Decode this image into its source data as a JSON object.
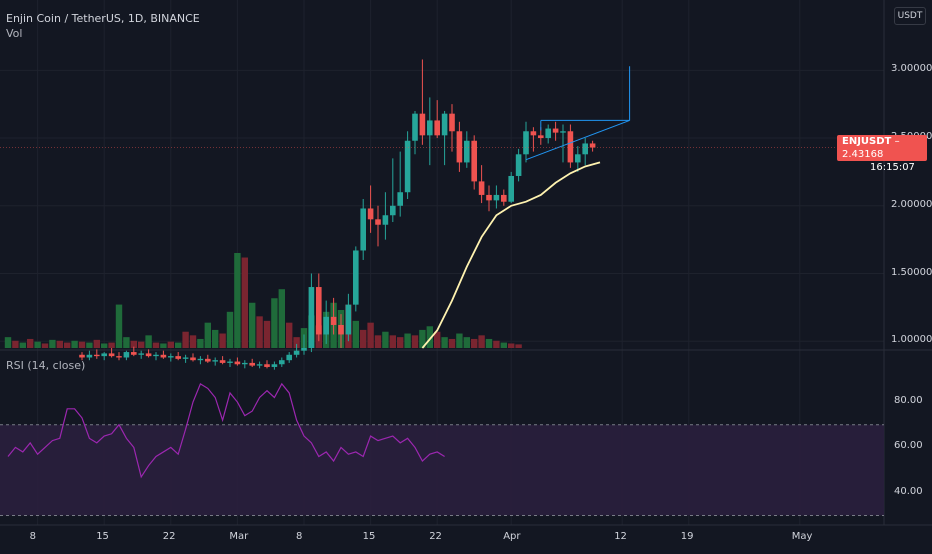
{
  "header": {
    "title": "Enjin Coin / TetherUS, 1D, BINANCE",
    "volume_label": "Vol",
    "rsi_label": "RSI (14, close)"
  },
  "quote_currency": "USDT",
  "last_price": {
    "symbol": "ENJUSDT",
    "value": "2.43168",
    "countdown": "16:15:07"
  },
  "colors": {
    "background": "#131722",
    "up": "#26a69a",
    "down": "#ef5350",
    "vol_up": "#1f6b3a",
    "vol_down": "#7a2530",
    "ma": "#fff3b0",
    "rsi": "#9c27b0",
    "rsi_band": "#2a1f3d",
    "drawing": "#2196f3",
    "price_tag": "#f05350"
  },
  "chart_data": [
    {
      "type": "candlestick",
      "price_axis_ticks": [
        "3.00000",
        "2.50000",
        "2.00000",
        "1.50000",
        "1.00000"
      ],
      "ylim": [
        0.95,
        3.15
      ],
      "x_tick_labels": [
        "8",
        "15",
        "22",
        "Mar",
        "8",
        "15",
        "22",
        "Apr",
        "12",
        "19",
        "May"
      ],
      "candles": [
        {
          "o": 0.9,
          "h": 0.92,
          "l": 0.86,
          "c": 0.88
        },
        {
          "o": 0.88,
          "h": 0.93,
          "l": 0.86,
          "c": 0.9
        },
        {
          "o": 0.9,
          "h": 0.94,
          "l": 0.87,
          "c": 0.89
        },
        {
          "o": 0.89,
          "h": 0.92,
          "l": 0.86,
          "c": 0.91
        },
        {
          "o": 0.91,
          "h": 0.95,
          "l": 0.88,
          "c": 0.89
        },
        {
          "o": 0.89,
          "h": 0.92,
          "l": 0.86,
          "c": 0.88
        },
        {
          "o": 0.88,
          "h": 0.93,
          "l": 0.86,
          "c": 0.92
        },
        {
          "o": 0.92,
          "h": 0.96,
          "l": 0.89,
          "c": 0.9
        },
        {
          "o": 0.9,
          "h": 0.93,
          "l": 0.87,
          "c": 0.91
        },
        {
          "o": 0.91,
          "h": 0.94,
          "l": 0.88,
          "c": 0.89
        },
        {
          "o": 0.89,
          "h": 0.92,
          "l": 0.86,
          "c": 0.9
        },
        {
          "o": 0.9,
          "h": 0.93,
          "l": 0.87,
          "c": 0.88
        },
        {
          "o": 0.88,
          "h": 0.91,
          "l": 0.85,
          "c": 0.89
        },
        {
          "o": 0.89,
          "h": 0.92,
          "l": 0.86,
          "c": 0.87
        },
        {
          "o": 0.87,
          "h": 0.9,
          "l": 0.84,
          "c": 0.88
        },
        {
          "o": 0.88,
          "h": 0.91,
          "l": 0.85,
          "c": 0.86
        },
        {
          "o": 0.86,
          "h": 0.89,
          "l": 0.83,
          "c": 0.87
        },
        {
          "o": 0.87,
          "h": 0.9,
          "l": 0.84,
          "c": 0.85
        },
        {
          "o": 0.85,
          "h": 0.88,
          "l": 0.82,
          "c": 0.86
        },
        {
          "o": 0.86,
          "h": 0.89,
          "l": 0.83,
          "c": 0.84
        },
        {
          "o": 0.84,
          "h": 0.87,
          "l": 0.81,
          "c": 0.85
        },
        {
          "o": 0.85,
          "h": 0.88,
          "l": 0.82,
          "c": 0.83
        },
        {
          "o": 0.83,
          "h": 0.86,
          "l": 0.8,
          "c": 0.84
        },
        {
          "o": 0.84,
          "h": 0.87,
          "l": 0.81,
          "c": 0.82
        },
        {
          "o": 0.82,
          "h": 0.85,
          "l": 0.8,
          "c": 0.83
        },
        {
          "o": 0.83,
          "h": 0.86,
          "l": 0.8,
          "c": 0.81
        },
        {
          "o": 0.81,
          "h": 0.85,
          "l": 0.79,
          "c": 0.83
        },
        {
          "o": 0.83,
          "h": 0.88,
          "l": 0.81,
          "c": 0.86
        },
        {
          "o": 0.86,
          "h": 0.92,
          "l": 0.84,
          "c": 0.9
        },
        {
          "o": 0.9,
          "h": 0.98,
          "l": 0.88,
          "c": 0.93
        },
        {
          "o": 0.93,
          "h": 1.05,
          "l": 0.9,
          "c": 0.95
        },
        {
          "o": 0.95,
          "h": 1.5,
          "l": 0.92,
          "c": 1.4
        },
        {
          "o": 1.4,
          "h": 1.5,
          "l": 1.0,
          "c": 1.05
        },
        {
          "o": 1.05,
          "h": 1.3,
          "l": 0.98,
          "c": 1.18
        },
        {
          "o": 1.18,
          "h": 1.32,
          "l": 1.05,
          "c": 1.12
        },
        {
          "o": 1.12,
          "h": 1.2,
          "l": 0.95,
          "c": 1.05
        },
        {
          "o": 1.05,
          "h": 1.35,
          "l": 1.0,
          "c": 1.27
        },
        {
          "o": 1.27,
          "h": 1.7,
          "l": 1.22,
          "c": 1.67
        },
        {
          "o": 1.67,
          "h": 2.05,
          "l": 1.6,
          "c": 1.98
        },
        {
          "o": 1.98,
          "h": 2.15,
          "l": 1.8,
          "c": 1.9
        },
        {
          "o": 1.9,
          "h": 2.0,
          "l": 1.7,
          "c": 1.86
        },
        {
          "o": 1.86,
          "h": 2.1,
          "l": 1.75,
          "c": 1.93
        },
        {
          "o": 1.93,
          "h": 2.35,
          "l": 1.88,
          "c": 2.0
        },
        {
          "o": 2.0,
          "h": 2.4,
          "l": 1.92,
          "c": 2.1
        },
        {
          "o": 2.1,
          "h": 2.55,
          "l": 2.05,
          "c": 2.48
        },
        {
          "o": 2.48,
          "h": 2.7,
          "l": 2.38,
          "c": 2.68
        },
        {
          "o": 2.68,
          "h": 3.08,
          "l": 2.45,
          "c": 2.52
        },
        {
          "o": 2.52,
          "h": 2.8,
          "l": 2.3,
          "c": 2.63
        },
        {
          "o": 2.63,
          "h": 2.78,
          "l": 2.5,
          "c": 2.52
        },
        {
          "o": 2.52,
          "h": 2.7,
          "l": 2.3,
          "c": 2.68
        },
        {
          "o": 2.68,
          "h": 2.75,
          "l": 2.4,
          "c": 2.55
        },
        {
          "o": 2.55,
          "h": 2.62,
          "l": 2.25,
          "c": 2.32
        },
        {
          "o": 2.32,
          "h": 2.55,
          "l": 2.28,
          "c": 2.48
        },
        {
          "o": 2.48,
          "h": 2.52,
          "l": 2.12,
          "c": 2.18
        },
        {
          "o": 2.18,
          "h": 2.3,
          "l": 2.02,
          "c": 2.08
        },
        {
          "o": 2.08,
          "h": 2.15,
          "l": 1.96,
          "c": 2.04
        },
        {
          "o": 2.04,
          "h": 2.15,
          "l": 1.98,
          "c": 2.08
        },
        {
          "o": 2.08,
          "h": 2.12,
          "l": 2.0,
          "c": 2.03
        },
        {
          "o": 2.03,
          "h": 2.25,
          "l": 2.02,
          "c": 2.22
        },
        {
          "o": 2.22,
          "h": 2.42,
          "l": 2.18,
          "c": 2.38
        },
        {
          "o": 2.38,
          "h": 2.62,
          "l": 2.32,
          "c": 2.55
        },
        {
          "o": 2.55,
          "h": 2.58,
          "l": 2.4,
          "c": 2.52
        },
        {
          "o": 2.52,
          "h": 2.58,
          "l": 2.45,
          "c": 2.5
        },
        {
          "o": 2.5,
          "h": 2.6,
          "l": 2.46,
          "c": 2.57
        },
        {
          "o": 2.57,
          "h": 2.62,
          "l": 2.48,
          "c": 2.54
        },
        {
          "o": 2.54,
          "h": 2.6,
          "l": 2.32,
          "c": 2.55
        },
        {
          "o": 2.55,
          "h": 2.6,
          "l": 2.28,
          "c": 2.32
        },
        {
          "o": 2.32,
          "h": 2.44,
          "l": 2.25,
          "c": 2.38
        },
        {
          "o": 2.38,
          "h": 2.5,
          "l": 2.3,
          "c": 2.46
        },
        {
          "o": 2.46,
          "h": 2.48,
          "l": 2.4,
          "c": 2.43
        }
      ],
      "ma_series": [
        {
          "i": 46,
          "v": 0.95
        },
        {
          "i": 48,
          "v": 1.08
        },
        {
          "i": 50,
          "v": 1.3
        },
        {
          "i": 52,
          "v": 1.55
        },
        {
          "i": 54,
          "v": 1.77
        },
        {
          "i": 56,
          "v": 1.93
        },
        {
          "i": 58,
          "v": 2.0
        },
        {
          "i": 60,
          "v": 2.03
        },
        {
          "i": 62,
          "v": 2.08
        },
        {
          "i": 64,
          "v": 2.17
        },
        {
          "i": 66,
          "v": 2.24
        },
        {
          "i": 68,
          "v": 2.29
        },
        {
          "i": 70,
          "v": 2.32
        }
      ],
      "volume": [
        {
          "v": 12,
          "up": true
        },
        {
          "v": 8,
          "up": false
        },
        {
          "v": 6,
          "up": true
        },
        {
          "v": 10,
          "up": false
        },
        {
          "v": 7,
          "up": true
        },
        {
          "v": 5,
          "up": false
        },
        {
          "v": 9,
          "up": true
        },
        {
          "v": 8,
          "up": false
        },
        {
          "v": 6,
          "up": false
        },
        {
          "v": 8,
          "up": true
        },
        {
          "v": 7,
          "up": false
        },
        {
          "v": 6,
          "up": true
        },
        {
          "v": 9,
          "up": false
        },
        {
          "v": 5,
          "up": true
        },
        {
          "v": 6,
          "up": false
        },
        {
          "v": 48,
          "up": true
        },
        {
          "v": 12,
          "up": true
        },
        {
          "v": 8,
          "up": false
        },
        {
          "v": 7,
          "up": false
        },
        {
          "v": 14,
          "up": true
        },
        {
          "v": 6,
          "up": false
        },
        {
          "v": 5,
          "up": true
        },
        {
          "v": 7,
          "up": false
        },
        {
          "v": 6,
          "up": true
        },
        {
          "v": 18,
          "up": false
        },
        {
          "v": 14,
          "up": false
        },
        {
          "v": 10,
          "up": true
        },
        {
          "v": 28,
          "up": true
        },
        {
          "v": 20,
          "up": true
        },
        {
          "v": 16,
          "up": false
        },
        {
          "v": 40,
          "up": true
        },
        {
          "v": 105,
          "up": true
        },
        {
          "v": 100,
          "up": false
        },
        {
          "v": 50,
          "up": true
        },
        {
          "v": 35,
          "up": false
        },
        {
          "v": 30,
          "up": false
        },
        {
          "v": 55,
          "up": true
        },
        {
          "v": 65,
          "up": true
        },
        {
          "v": 28,
          "up": false
        },
        {
          "v": 12,
          "up": false
        },
        {
          "v": 22,
          "up": true
        },
        {
          "v": 36,
          "up": true
        },
        {
          "v": 25,
          "up": false
        },
        {
          "v": 40,
          "up": true
        },
        {
          "v": 50,
          "up": true
        },
        {
          "v": 42,
          "up": true
        },
        {
          "v": 48,
          "up": false
        },
        {
          "v": 30,
          "up": true
        },
        {
          "v": 20,
          "up": false
        },
        {
          "v": 28,
          "up": false
        },
        {
          "v": 14,
          "up": false
        },
        {
          "v": 18,
          "up": true
        },
        {
          "v": 14,
          "up": false
        },
        {
          "v": 12,
          "up": false
        },
        {
          "v": 16,
          "up": true
        },
        {
          "v": 14,
          "up": false
        },
        {
          "v": 20,
          "up": true
        },
        {
          "v": 24,
          "up": true
        },
        {
          "v": 18,
          "up": false
        },
        {
          "v": 12,
          "up": true
        },
        {
          "v": 10,
          "up": false
        },
        {
          "v": 16,
          "up": true
        },
        {
          "v": 12,
          "up": true
        },
        {
          "v": 10,
          "up": false
        },
        {
          "v": 14,
          "up": false
        },
        {
          "v": 10,
          "up": true
        },
        {
          "v": 8,
          "up": false
        },
        {
          "v": 6,
          "up": true
        },
        {
          "v": 5,
          "up": false
        },
        {
          "v": 4,
          "up": false
        }
      ],
      "horizontal_line": {
        "value": 2.63,
        "from_index": 62,
        "to_index": 74
      },
      "triangle": {
        "apex_index": 84,
        "apex_value": 2.63,
        "low_index": 70,
        "low_value": 2.34,
        "high_value": 2.63
      },
      "spike": {
        "index": 74,
        "value": 3.03
      }
    },
    {
      "type": "line",
      "name": "RSI (14, close)",
      "axis_ticks": [
        "80.00",
        "60.00",
        "40.00"
      ],
      "ylim": [
        28,
        95
      ],
      "band": [
        70,
        30
      ],
      "values": [
        56,
        60,
        58,
        62,
        57,
        60,
        63,
        64,
        77,
        77,
        73,
        64,
        62,
        65,
        66,
        70,
        64,
        60,
        47,
        52,
        56,
        58,
        60,
        57,
        68,
        80,
        88,
        86,
        82,
        72,
        84,
        80,
        74,
        76,
        82,
        85,
        82,
        88,
        84,
        72,
        65,
        62,
        56,
        58,
        54,
        60,
        57,
        58,
        56,
        65,
        63,
        64,
        65,
        62,
        64,
        60,
        54,
        57,
        58,
        56
      ]
    }
  ]
}
